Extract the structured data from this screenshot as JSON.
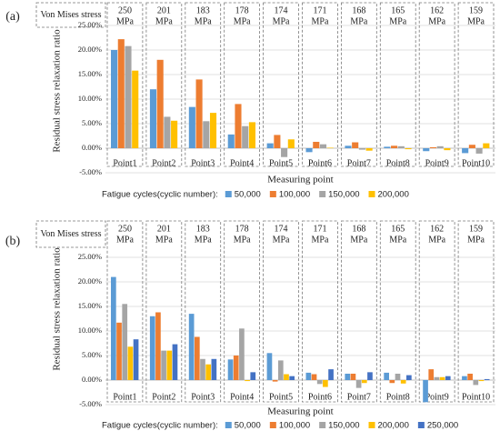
{
  "chart_data": [
    {
      "panel_label": "(a)",
      "type": "bar",
      "header_label": "Von Mises stress",
      "stress_values": [
        "250",
        "201",
        "183",
        "178",
        "174",
        "171",
        "168",
        "165",
        "162",
        "159"
      ],
      "stress_unit": "MPa",
      "categories": [
        "Point1",
        "Point2",
        "Point3",
        "Point4",
        "Point5",
        "Point6",
        "Point7",
        "Point8",
        "Point9",
        "Point10"
      ],
      "xlabel": "Measuring point",
      "ylabel": "Residual stress relaxation ratio",
      "ylim": [
        -5,
        25
      ],
      "yticks": [
        -5,
        0,
        5,
        10,
        15,
        20,
        25
      ],
      "ytick_labels": [
        "-5.00%",
        "0.00%",
        "5.00%",
        "10.00%",
        "15.00%",
        "20.00%",
        "25.00%"
      ],
      "legend_title": "Fatigue cycles(cyclic number):",
      "legend_position": "bottom",
      "series": [
        {
          "name": "50,000",
          "color": "#5b9bd5",
          "values": [
            20,
            12,
            8.4,
            2.8,
            1.0,
            -0.8,
            0.5,
            0.3,
            -0.6,
            -1.0
          ]
        },
        {
          "name": "100,000",
          "color": "#ed7d31",
          "values": [
            22.2,
            18,
            14,
            9,
            2.7,
            1.3,
            1.2,
            0.5,
            0.2,
            0.7
          ]
        },
        {
          "name": "150,000",
          "color": "#a5a5a5",
          "values": [
            20.8,
            6.4,
            5.5,
            4.5,
            -1.8,
            0.8,
            -0.3,
            0.4,
            0.4,
            -1.1
          ]
        },
        {
          "name": "200,000",
          "color": "#ffc000",
          "values": [
            15.8,
            5.6,
            7.2,
            5.3,
            1.8,
            0.1,
            -0.5,
            -0.2,
            -0.4,
            1.0
          ]
        }
      ]
    },
    {
      "panel_label": "(b)",
      "type": "bar",
      "header_label": "Von Mises stress",
      "stress_values": [
        "250",
        "201",
        "183",
        "178",
        "174",
        "171",
        "168",
        "165",
        "162",
        "159"
      ],
      "stress_unit": "MPa",
      "categories": [
        "Point1",
        "Point2",
        "Point3",
        "Point4",
        "Point5",
        "Point6",
        "Point7",
        "Point8",
        "Point9",
        "Point10"
      ],
      "xlabel": "Measuring point",
      "ylabel": "Residual stress relaxation ratio",
      "ylim": [
        -5,
        25
      ],
      "yticks": [
        -5,
        0,
        5,
        10,
        15,
        20,
        25
      ],
      "ytick_labels": [
        "-5.00%",
        "0.00%",
        "5.00%",
        "10.00%",
        "15.00%",
        "20.00%",
        "25.00%"
      ],
      "legend_title": "Fatigue cycles(cyclic number):",
      "legend_position": "bottom",
      "series": [
        {
          "name": "50,000",
          "color": "#5b9bd5",
          "values": [
            21,
            13,
            13.5,
            4.2,
            5.5,
            1.5,
            1.3,
            1.5,
            -4.5,
            0.8
          ]
        },
        {
          "name": "100,000",
          "color": "#ed7d31",
          "values": [
            11.7,
            13.8,
            8.8,
            5.0,
            -0.3,
            1.2,
            1.3,
            -0.6,
            2.2,
            1.3
          ]
        },
        {
          "name": "150,000",
          "color": "#a5a5a5",
          "values": [
            15.5,
            6.0,
            4.3,
            10.5,
            4.0,
            -0.8,
            -1.6,
            1.3,
            0.6,
            -1.0
          ]
        },
        {
          "name": "200,000",
          "color": "#ffc000",
          "values": [
            6.8,
            6.0,
            3.2,
            -0.2,
            1.2,
            -1.4,
            -0.6,
            -0.7,
            0.6,
            -0.2
          ]
        },
        {
          "name": "250,000",
          "color": "#4472c4",
          "values": [
            8.3,
            7.3,
            4.3,
            1.6,
            0.8,
            2.2,
            1.6,
            1.0,
            0.8,
            0.2
          ]
        }
      ]
    }
  ]
}
